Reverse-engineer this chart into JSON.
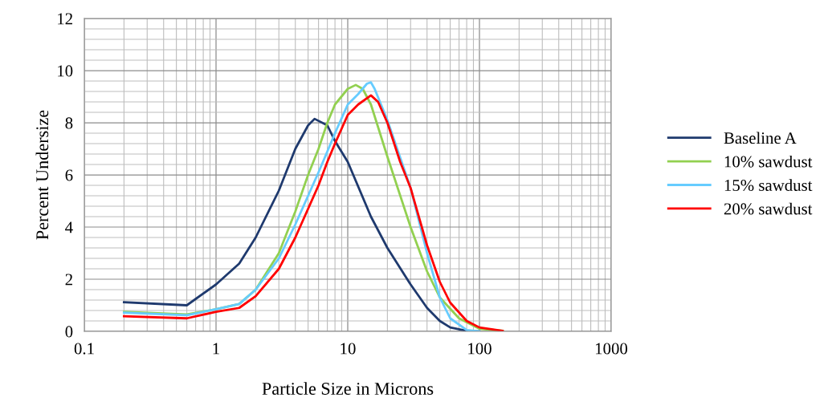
{
  "chart_data": {
    "type": "line",
    "xlabel": "Particle Size in Microns",
    "ylabel": "Percent Undersize",
    "log": "x",
    "xlim": [
      0.1,
      1000
    ],
    "xticks": [
      0.1,
      1,
      10,
      100,
      1000
    ],
    "ylim": [
      0,
      12
    ],
    "yticks": [
      0,
      2,
      4,
      6,
      8,
      10,
      12
    ],
    "grid": true,
    "legend": "right",
    "marker": "none",
    "line_style": "solid",
    "series": [
      {
        "name": "Baseline A",
        "color": "#1f3a6e",
        "x": [
          0.2,
          0.6,
          1,
          1.5,
          2,
          3,
          4,
          5,
          5.6,
          7,
          8,
          10,
          15,
          20,
          30,
          40,
          50,
          60,
          80,
          100
        ],
        "values": [
          1.12,
          1.0,
          1.8,
          2.6,
          3.6,
          5.4,
          7.0,
          7.9,
          8.15,
          7.9,
          7.3,
          6.5,
          4.4,
          3.2,
          1.8,
          0.9,
          0.4,
          0.15,
          0.02,
          0
        ]
      },
      {
        "name": "10% sawdust",
        "color": "#92d050",
        "x": [
          0.2,
          0.6,
          1,
          1.5,
          2,
          3,
          4,
          5,
          6,
          7,
          8,
          10,
          11.5,
          13,
          15,
          20,
          30,
          40,
          50,
          70,
          100,
          150
        ],
        "values": [
          0.75,
          0.65,
          0.85,
          1.05,
          1.6,
          3.0,
          4.6,
          6.0,
          7.0,
          8.0,
          8.7,
          9.3,
          9.45,
          9.3,
          8.7,
          6.7,
          4.0,
          2.3,
          1.3,
          0.5,
          0.1,
          0.02
        ]
      },
      {
        "name": "15% sawdust",
        "color": "#66ccff",
        "x": [
          0.2,
          0.6,
          1,
          1.5,
          2,
          3,
          4,
          5,
          6,
          7,
          8,
          10,
          12,
          14,
          15,
          16,
          20,
          30,
          40,
          50,
          60,
          80,
          100
        ],
        "values": [
          0.72,
          0.62,
          0.85,
          1.05,
          1.6,
          2.8,
          4.1,
          5.2,
          6.1,
          6.9,
          7.6,
          8.7,
          9.1,
          9.5,
          9.55,
          9.3,
          8.1,
          5.5,
          3.0,
          1.3,
          0.5,
          0.05,
          0
        ]
      },
      {
        "name": "20% sawdust",
        "color": "#ff0000",
        "x": [
          0.2,
          0.6,
          1,
          1.5,
          2,
          3,
          4,
          5,
          6,
          7,
          8,
          10,
          12,
          15,
          17,
          20,
          25,
          30,
          40,
          50,
          60,
          80,
          100,
          150
        ],
        "values": [
          0.58,
          0.5,
          0.75,
          0.9,
          1.35,
          2.4,
          3.6,
          4.7,
          5.6,
          6.5,
          7.2,
          8.3,
          8.7,
          9.05,
          8.8,
          8.0,
          6.5,
          5.5,
          3.3,
          1.9,
          1.1,
          0.4,
          0.15,
          0.02
        ]
      }
    ]
  }
}
